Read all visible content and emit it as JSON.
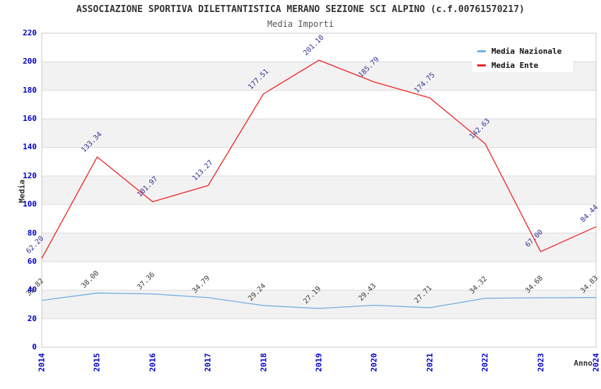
{
  "chart_data": {
    "type": "line",
    "title": "ASSOCIAZIONE SPORTIVA DILETTANTISTICA MERANO SEZIONE SCI ALPINO (c.f.00761570217)",
    "subtitle": "Media Importi",
    "xlabel": "Anno",
    "ylabel": "Media",
    "categories": [
      "2014",
      "2015",
      "2016",
      "2017",
      "2018",
      "2019",
      "2020",
      "2021",
      "2022",
      "2023",
      "2024"
    ],
    "series": [
      {
        "name": "Media Nazionale",
        "color": "#74ade0",
        "label_color": "#3b3b3b",
        "values": [
          32.82,
          38.0,
          37.36,
          34.79,
          29.24,
          27.19,
          29.43,
          27.71,
          34.32,
          34.68,
          34.83
        ]
      },
      {
        "name": "Media Ente",
        "color": "#ee2222",
        "label_color": "#333399",
        "values": [
          62.2,
          133.34,
          101.97,
          113.27,
          177.51,
          201.1,
          185.79,
          174.75,
          142.63,
          67.0,
          84.44
        ]
      }
    ],
    "ylim": [
      0,
      220
    ],
    "ytick_step": 20,
    "grid": "horizontal-bands",
    "legend_position": "top-right",
    "colors": {
      "axis_tick_text": "#0000cc",
      "band_gray": "#f2f2f2",
      "gridline": "#dcdcdc",
      "plot_border": "#c8c8c8"
    }
  }
}
